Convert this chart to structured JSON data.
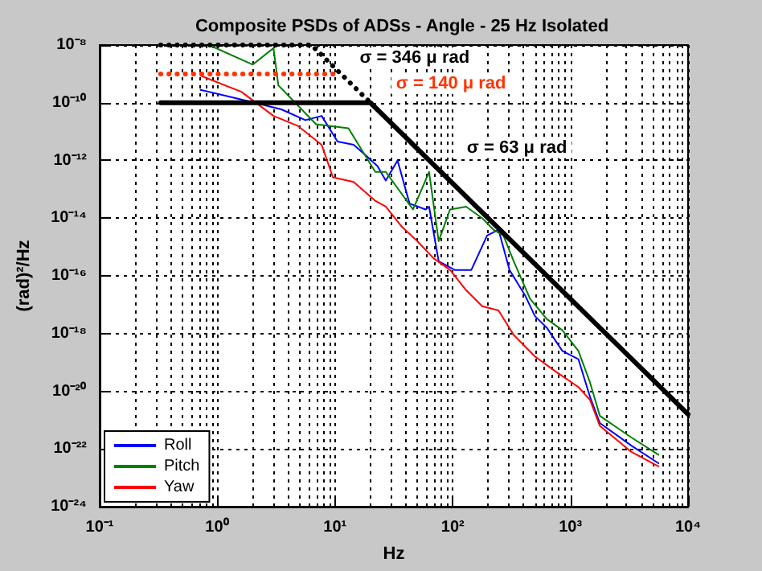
{
  "chart_data": {
    "type": "line",
    "title": "Composite PSDs of ADSs - Angle - 25 Hz Isolated",
    "xlabel": "Hz",
    "ylabel": "(rad)²/Hz",
    "log": "xy",
    "grid": true,
    "legend": "bottom left",
    "marker": "none",
    "xlim": [
      0.1,
      10000
    ],
    "ylim": [
      1e-24,
      1e-08
    ],
    "xticks": [
      {
        "value": 0.1,
        "label": "10⁻¹"
      },
      {
        "value": 1,
        "label": "10⁰"
      },
      {
        "value": 10,
        "label": "10¹"
      },
      {
        "value": 100,
        "label": "10²"
      },
      {
        "value": 1000,
        "label": "10³"
      },
      {
        "value": 10000,
        "label": "10⁴"
      }
    ],
    "yticks": [
      {
        "value": 1e-24,
        "label": "10⁻²⁴"
      },
      {
        "value": 1e-22,
        "label": "10⁻²²"
      },
      {
        "value": 1e-20,
        "label": "10⁻²⁰"
      },
      {
        "value": 1e-18,
        "label": "10⁻¹⁸"
      },
      {
        "value": 1e-16,
        "label": "10⁻¹⁶"
      },
      {
        "value": 1e-14,
        "label": "10⁻¹⁴"
      },
      {
        "value": 1e-12,
        "label": "10⁻¹²"
      },
      {
        "value": 1e-10,
        "label": "10⁻¹⁰"
      },
      {
        "value": 1e-08,
        "label": "10⁻⁸"
      }
    ],
    "series": [
      {
        "name": "Roll",
        "color": "#0000ff",
        "x": [
          0.72,
          1.6,
          3.5,
          5.6,
          7.7,
          10.5,
          14.4,
          18.6,
          23,
          27,
          34,
          43,
          59,
          63,
          76,
          104,
          144,
          196,
          245,
          304,
          415,
          500,
          630,
          855,
          1170,
          1470,
          1780,
          3300,
          5600
        ],
        "values": [
          2.8e-10,
          1.3e-10,
          5.9e-11,
          2.5e-11,
          3.5e-11,
          4.5e-12,
          3.5e-12,
          1.4e-12,
          6.3e-13,
          2e-13,
          1e-12,
          3.2e-14,
          2e-14,
          2.5e-14,
          3.2e-16,
          1.6e-16,
          1.6e-16,
          2.5e-15,
          4e-15,
          1.6e-16,
          2e-17,
          4e-18,
          1.6e-18,
          2.5e-19,
          1.3e-19,
          6.3e-21,
          7.9e-22,
          1.3e-22,
          3.2e-23
        ]
      },
      {
        "name": "Pitch",
        "color": "#008000",
        "x": [
          0.85,
          2,
          3,
          3.3,
          6.9,
          13,
          22,
          27,
          46,
          63,
          76,
          95,
          130,
          178,
          222,
          270,
          330,
          455,
          630,
          855,
          1170,
          1470,
          1780,
          3300,
          5600
        ],
        "values": [
          1e-08,
          2.1e-09,
          7.8e-09,
          4e-10,
          1.8e-11,
          1.3e-11,
          4e-13,
          4e-13,
          2e-14,
          4e-13,
          1.6e-15,
          2e-14,
          2.5e-14,
          1e-14,
          4e-15,
          2.5e-15,
          3.2e-16,
          1.6e-17,
          3.2e-18,
          1.3e-18,
          2.5e-19,
          2e-20,
          1.4e-21,
          2.5e-22,
          6.3e-23
        ]
      },
      {
        "name": "Yaw",
        "color": "#ff0000",
        "x": [
          0.72,
          1.6,
          3,
          4.8,
          7.7,
          9.6,
          14.4,
          22,
          27,
          37,
          50,
          69,
          95,
          130,
          178,
          245,
          330,
          500,
          740,
          1170,
          1470,
          1780,
          3300,
          5600
        ],
        "values": [
          8.7e-10,
          2.4e-10,
          3.5e-11,
          1.6e-11,
          3.5e-12,
          2.6e-13,
          1.8e-13,
          4e-14,
          2.5e-14,
          5e-15,
          1.6e-15,
          4e-16,
          1.6e-16,
          3.2e-17,
          8.9e-18,
          6.3e-18,
          8.9e-19,
          1.6e-19,
          5e-20,
          1.4e-20,
          5e-21,
          6.3e-22,
          7.9e-23,
          2.5e-23
        ]
      },
      {
        "name": "σ = 346 μ rad",
        "type": "line",
        "line_style": "dotted",
        "color": "#000000",
        "x": [
          0.33,
          6.3,
          20
        ],
        "values": [
          1e-08,
          1e-08,
          1e-10
        ]
      },
      {
        "name": "σ = 140 μ rad",
        "type": "line",
        "line_style": "dotted",
        "color": "#ff3300",
        "x": [
          0.33,
          10
        ],
        "values": [
          1e-09,
          1e-09
        ]
      },
      {
        "name": "σ = 63 μ rad",
        "type": "line",
        "line_style": "solid",
        "color": "#000000",
        "x": [
          0.33,
          20,
          10000
        ],
        "values": [
          1e-10,
          1e-10,
          1.6e-21
        ]
      }
    ]
  }
}
